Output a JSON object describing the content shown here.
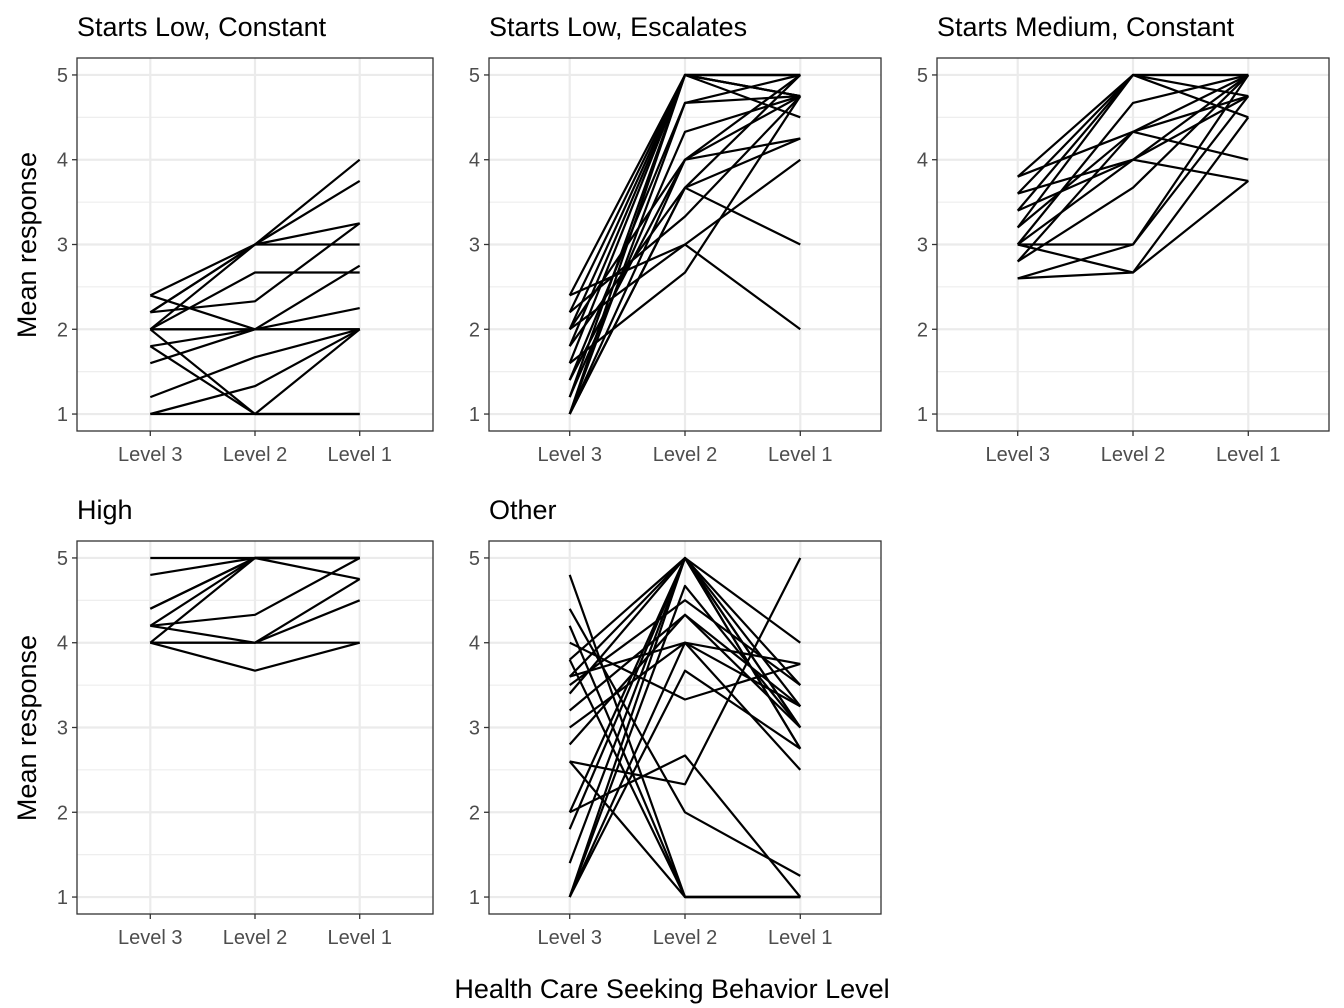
{
  "chart_data": {
    "type": "line",
    "facet_layout": "3 columns, 2 rows",
    "x_categories": [
      "Level 3",
      "Level 2",
      "Level 1"
    ],
    "ylim": [
      0.8,
      5.2
    ],
    "y_ticks": [
      1,
      2,
      3,
      4,
      5
    ],
    "grid": true,
    "xlabel": "Health Care Seeking Behavior Level",
    "ylabel": "Mean response",
    "panels": [
      {
        "title": "Starts Low, Constant",
        "series": [
          [
            2.4,
            3.0,
            4.0
          ],
          [
            2.2,
            3.0,
            3.75
          ],
          [
            2.2,
            3.0,
            3.25
          ],
          [
            2.0,
            3.0,
            3.0
          ],
          [
            2.0,
            2.67,
            2.67
          ],
          [
            2.2,
            2.33,
            3.25
          ],
          [
            1.8,
            2.0,
            2.75
          ],
          [
            2.4,
            2.0,
            2.0
          ],
          [
            2.0,
            2.0,
            2.25
          ],
          [
            1.6,
            2.0,
            2.0
          ],
          [
            1.2,
            1.67,
            2.0
          ],
          [
            1.0,
            1.33,
            2.0
          ],
          [
            2.0,
            1.0,
            1.0
          ],
          [
            1.8,
            1.0,
            2.0
          ],
          [
            1.0,
            1.0,
            1.0
          ],
          [
            2.0,
            2.0,
            2.0
          ]
        ]
      },
      {
        "title": "Starts Low, Escalates",
        "series": [
          [
            2.4,
            5.0,
            5.0
          ],
          [
            2.2,
            5.0,
            4.75
          ],
          [
            2.0,
            5.0,
            4.5
          ],
          [
            1.8,
            5.0,
            5.0
          ],
          [
            1.6,
            5.0,
            4.75
          ],
          [
            1.4,
            4.67,
            5.0
          ],
          [
            1.2,
            5.0,
            4.75
          ],
          [
            1.0,
            5.0,
            5.0
          ],
          [
            1.0,
            4.67,
            4.75
          ],
          [
            1.2,
            4.33,
            4.75
          ],
          [
            1.0,
            4.0,
            5.0
          ],
          [
            1.0,
            3.67,
            4.25
          ],
          [
            1.4,
            4.0,
            4.25
          ],
          [
            1.8,
            3.67,
            3.0
          ],
          [
            2.0,
            3.0,
            2.0
          ],
          [
            2.2,
            3.33,
            4.75
          ],
          [
            2.4,
            3.0,
            4.0
          ],
          [
            1.6,
            2.67,
            4.75
          ],
          [
            1.0,
            3.67,
            5.0
          ],
          [
            2.0,
            4.0,
            4.75
          ]
        ]
      },
      {
        "title": "Starts Medium, Constant",
        "series": [
          [
            3.8,
            5.0,
            5.0
          ],
          [
            3.6,
            5.0,
            4.75
          ],
          [
            3.4,
            5.0,
            5.0
          ],
          [
            3.2,
            5.0,
            4.5
          ],
          [
            3.0,
            4.67,
            5.0
          ],
          [
            3.8,
            4.33,
            4.0
          ],
          [
            3.6,
            4.0,
            5.0
          ],
          [
            3.4,
            4.0,
            4.75
          ],
          [
            3.0,
            4.0,
            3.75
          ],
          [
            2.8,
            3.67,
            5.0
          ],
          [
            3.2,
            4.33,
            4.75
          ],
          [
            3.0,
            3.0,
            5.0
          ],
          [
            2.6,
            3.0,
            4.75
          ],
          [
            3.0,
            2.67,
            4.5
          ],
          [
            2.6,
            2.67,
            3.75
          ],
          [
            2.8,
            4.33,
            5.0
          ]
        ]
      },
      {
        "title": "High",
        "series": [
          [
            5.0,
            5.0,
            5.0
          ],
          [
            4.8,
            5.0,
            5.0
          ],
          [
            4.4,
            5.0,
            4.75
          ],
          [
            4.2,
            5.0,
            5.0
          ],
          [
            4.4,
            5.0,
            5.0
          ],
          [
            4.2,
            4.33,
            5.0
          ],
          [
            4.0,
            4.0,
            4.5
          ],
          [
            4.2,
            4.0,
            4.75
          ],
          [
            4.0,
            3.67,
            4.0
          ],
          [
            4.0,
            5.0,
            5.0
          ],
          [
            4.0,
            4.0,
            4.0
          ]
        ]
      },
      {
        "title": "Other",
        "series": [
          [
            4.8,
            1.0,
            1.0
          ],
          [
            4.4,
            2.0,
            1.25
          ],
          [
            4.2,
            1.0,
            1.0
          ],
          [
            3.8,
            5.0,
            3.0
          ],
          [
            3.6,
            5.0,
            2.75
          ],
          [
            3.5,
            4.5,
            3.5
          ],
          [
            3.4,
            5.0,
            2.75
          ],
          [
            3.2,
            4.33,
            3.25
          ],
          [
            3.0,
            4.0,
            3.75
          ],
          [
            2.8,
            4.33,
            3.0
          ],
          [
            2.6,
            2.33,
            5.0
          ],
          [
            2.0,
            2.67,
            1.0
          ],
          [
            1.8,
            5.0,
            3.0
          ],
          [
            1.4,
            5.0,
            4.0
          ],
          [
            1.0,
            5.0,
            3.5
          ],
          [
            1.0,
            4.67,
            3.0
          ],
          [
            1.0,
            4.0,
            2.5
          ],
          [
            1.0,
            3.67,
            2.75
          ],
          [
            2.6,
            1.0,
            1.0
          ],
          [
            4.0,
            3.33,
            3.75
          ],
          [
            3.6,
            4.0,
            3.25
          ],
          [
            3.8,
            1.0,
            1.0
          ],
          [
            2.0,
            5.0,
            3.25
          ]
        ]
      }
    ]
  }
}
